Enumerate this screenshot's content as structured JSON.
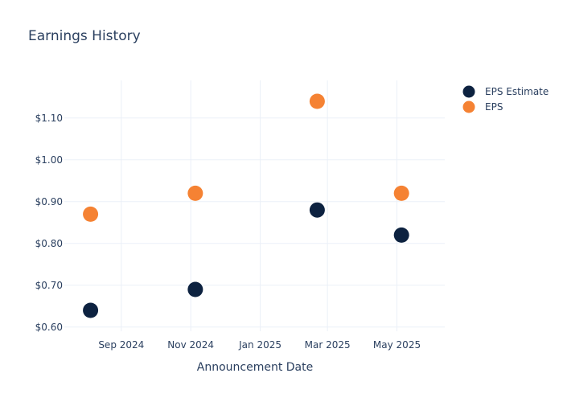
{
  "chart_data": {
    "type": "scatter",
    "title": "Earnings History",
    "xlabel": "Announcement Date",
    "ylabel": "",
    "x": [
      "2024-08-05",
      "2024-11-05",
      "2025-02-20",
      "2025-05-05"
    ],
    "series": [
      {
        "name": "EPS Estimate",
        "color": "#0d2240",
        "values": [
          0.64,
          0.69,
          0.88,
          0.82
        ]
      },
      {
        "name": "EPS",
        "color": "#f58233",
        "values": [
          0.87,
          0.92,
          1.14,
          0.92
        ]
      }
    ],
    "x_ticks": [
      {
        "date": "2024-09-01",
        "label": "Sep 2024"
      },
      {
        "date": "2024-11-01",
        "label": "Nov 2024"
      },
      {
        "date": "2025-01-01",
        "label": "Jan 2025"
      },
      {
        "date": "2025-03-01",
        "label": "Mar 2025"
      },
      {
        "date": "2025-05-01",
        "label": "May 2025"
      }
    ],
    "y_ticks": [
      {
        "value": 0.6,
        "label": "$0.60"
      },
      {
        "value": 0.7,
        "label": "$0.70"
      },
      {
        "value": 0.8,
        "label": "$0.80"
      },
      {
        "value": 0.9,
        "label": "$0.90"
      },
      {
        "value": 1.0,
        "label": "$1.00"
      },
      {
        "value": 1.1,
        "label": "$1.10"
      }
    ],
    "xlim": [
      "2024-07-13",
      "2025-06-12"
    ],
    "ylim": [
      0.59,
      1.19
    ],
    "grid": true,
    "legend": "top-right"
  }
}
